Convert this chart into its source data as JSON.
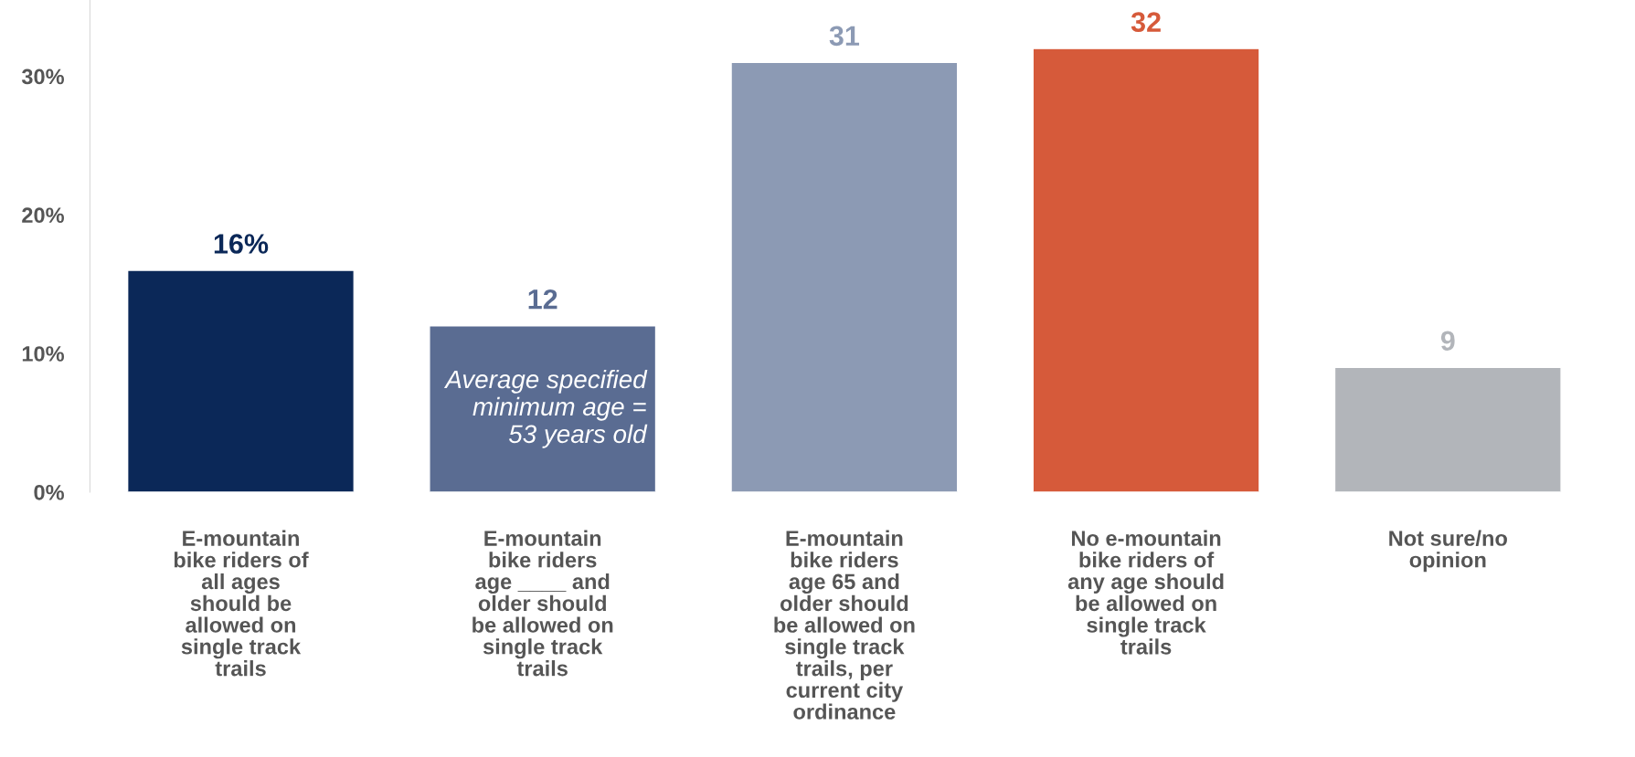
{
  "chart_data": {
    "type": "bar",
    "categories": [
      "E-mountain\nbike riders of\nall ages\nshould be\nallowed on\nsingle track\ntrails",
      "E-mountain\nbike riders\nage ____ and\nolder should\nbe allowed on\nsingle track\ntrails",
      "E-mountain\nbike riders\nage 65 and\nolder should\nbe allowed on\nsingle track\ntrails, per\ncurrent city\nordinance",
      "No e-mountain\nbike riders of\nany age should\nbe allowed on\nsingle track\ntrails",
      "Not sure/no\nopinion"
    ],
    "values": [
      16,
      12,
      31,
      32,
      9
    ],
    "value_labels": [
      "16%",
      "12",
      "31",
      "32",
      "9"
    ],
    "colors": [
      "#0b2858",
      "#5a6c92",
      "#8c9ab4",
      "#d65a3a",
      "#b2b5ba"
    ],
    "ylim": [
      0,
      35.5
    ],
    "yticks": [
      {
        "value": 0,
        "label": "0%"
      },
      {
        "value": 10,
        "label": "10%"
      },
      {
        "value": 20,
        "label": "20%"
      },
      {
        "value": 30,
        "label": "30%"
      }
    ],
    "annotations": [
      "Average specified\nminimum age =\n53 years old"
    ],
    "grid": false,
    "legend": false
  }
}
